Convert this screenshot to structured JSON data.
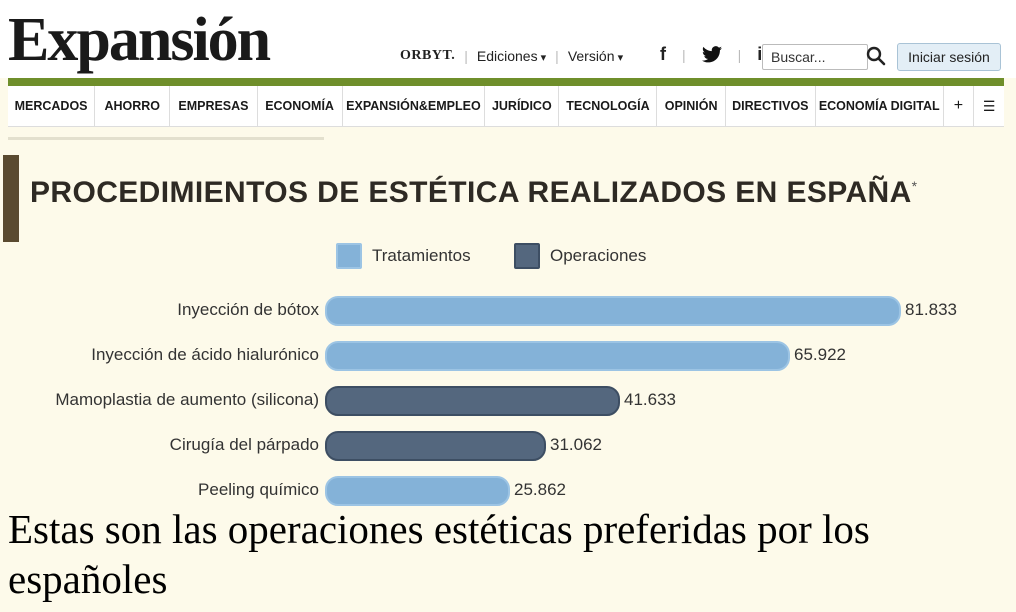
{
  "header": {
    "logo": "Expansión",
    "links": {
      "orbyt": "ORBYT.",
      "ediciones": "Ediciones",
      "version": "Versión"
    },
    "social": {
      "facebook": "f",
      "twitter": "🐦",
      "linkedin": "in"
    },
    "search_placeholder": "Buscar...",
    "login": "Iniciar sesión"
  },
  "nav": [
    "MERCADOS",
    "AHORRO",
    "EMPRESAS",
    "ECONOMÍA",
    "EXPANSIÓN&EMPLEO",
    "JURÍDICO",
    "TECNOLOGÍA",
    "OPINIÓN",
    "DIRECTIVOS",
    "ECONOMÍA DIGITAL",
    "+",
    "☰"
  ],
  "chart_data": {
    "type": "bar",
    "orientation": "horizontal",
    "title": "PROCEDIMIENTOS DE ESTÉTICA REALIZADOS EN ESPAÑA",
    "title_mark": "*",
    "legend": [
      {
        "name": "Tratamientos",
        "color": "#84b2d8"
      },
      {
        "name": "Operaciones",
        "color": "#54677e"
      }
    ],
    "categories": [
      "Inyección de bótox",
      "Inyección de ácido hialurónico",
      "Mamoplastia de aumento (silicona)",
      "Cirugía del párpado",
      "Peeling químico"
    ],
    "values": [
      81833,
      65922,
      41633,
      31062,
      25862
    ],
    "value_labels": [
      "81.833",
      "65.922",
      "41.633",
      "31.062",
      "25.862"
    ],
    "groups": [
      "Tratamientos",
      "Tratamientos",
      "Operaciones",
      "Operaciones",
      "Tratamientos"
    ]
  },
  "headline": "Estas son las operaciones estéticas preferidas por los españoles"
}
